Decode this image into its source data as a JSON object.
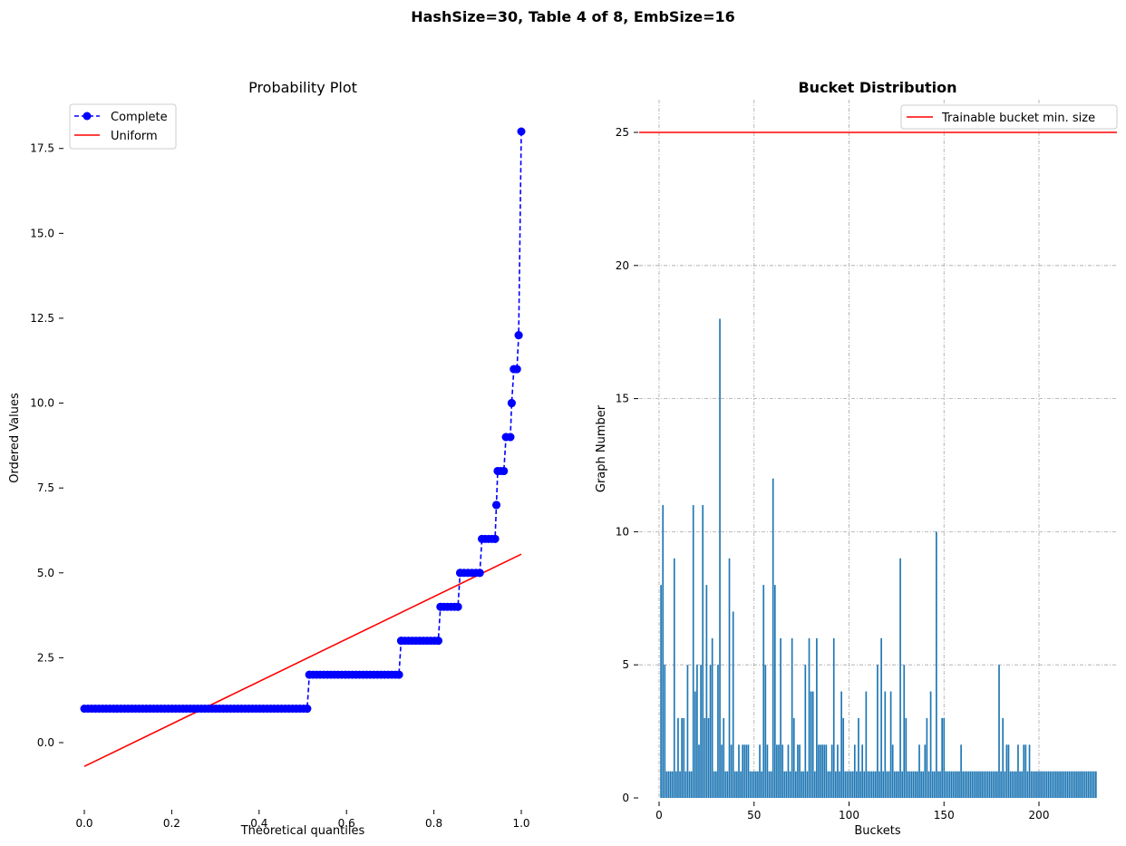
{
  "suptitle": "HashSize=30, Table 4 of 8, EmbSize=16",
  "chart_data": [
    {
      "type": "scatter",
      "title": "Probability Plot",
      "xlabel": "Theoretical quantiles",
      "ylabel": "Ordered Values",
      "xlim": [
        -0.05,
        1.05
      ],
      "ylim": [
        -1.65,
        18.9
      ],
      "xticks": [
        "0.0",
        "0.2",
        "0.4",
        "0.6",
        "0.8",
        "1.0"
      ],
      "yticks": [
        "0.0",
        "2.5",
        "5.0",
        "7.5",
        "10.0",
        "12.5",
        "15.0",
        "17.5"
      ],
      "legend": {
        "placement": "top-left",
        "entries": [
          "Complete",
          "Uniform"
        ]
      },
      "grid": false,
      "series": [
        {
          "name": "Complete",
          "style": "dashed line with circle markers",
          "color": "#0000ff",
          "points": [
            [
              0.0,
              1
            ],
            [
              0.51,
              1
            ],
            [
              0.515,
              2
            ],
            [
              0.72,
              2
            ],
            [
              0.725,
              3
            ],
            [
              0.81,
              3
            ],
            [
              0.815,
              4
            ],
            [
              0.855,
              4
            ],
            [
              0.86,
              5
            ],
            [
              0.905,
              5
            ],
            [
              0.91,
              6
            ],
            [
              0.94,
              6
            ],
            [
              0.943,
              7
            ],
            [
              0.946,
              8
            ],
            [
              0.96,
              8
            ],
            [
              0.965,
              9
            ],
            [
              0.975,
              9
            ],
            [
              0.978,
              10
            ],
            [
              0.983,
              11
            ],
            [
              0.99,
              11
            ],
            [
              0.994,
              12
            ],
            [
              1.0,
              18
            ]
          ]
        },
        {
          "name": "Uniform",
          "style": "solid line",
          "color": "#ff0000",
          "points": [
            [
              0.0,
              -0.7
            ],
            [
              1.0,
              5.55
            ]
          ]
        }
      ]
    },
    {
      "type": "bar",
      "title": "Bucket Distribution",
      "xlabel": "Buckets",
      "ylabel": "Graph Number",
      "xlim": [
        -11,
        242
      ],
      "ylim": [
        0,
        26.3
      ],
      "xticks": [
        "0",
        "50",
        "100",
        "150",
        "200"
      ],
      "yticks": [
        "0",
        "5",
        "10",
        "15",
        "20",
        "25"
      ],
      "grid": true,
      "legend": {
        "placement": "top-right",
        "entries": [
          "Trainable bucket min. size"
        ]
      },
      "bar_color": "#1f77b4",
      "hline": {
        "name": "Trainable bucket min. size",
        "y": 25,
        "color": "#ff0000"
      },
      "values": [
        8,
        11,
        5,
        1,
        1,
        1,
        1,
        9,
        1,
        3,
        1,
        3,
        3,
        1,
        5,
        1,
        1,
        11,
        4,
        5,
        2,
        5,
        11,
        3,
        8,
        3,
        5,
        6,
        1,
        1,
        5,
        18,
        2,
        3,
        1,
        1,
        9,
        2,
        7,
        1,
        1,
        2,
        1,
        2,
        2,
        2,
        2,
        1,
        1,
        1,
        1,
        1,
        2,
        1,
        8,
        5,
        2,
        1,
        1,
        12,
        8,
        2,
        2,
        6,
        2,
        1,
        1,
        2,
        1,
        6,
        3,
        1,
        2,
        2,
        1,
        1,
        5,
        1,
        6,
        4,
        4,
        1,
        6,
        2,
        2,
        2,
        2,
        2,
        1,
        1,
        2,
        6,
        1,
        2,
        1,
        4,
        3,
        1,
        1,
        1,
        1,
        1,
        2,
        1,
        3,
        1,
        2,
        1,
        4,
        1,
        1,
        1,
        1,
        1,
        5,
        1,
        6,
        1,
        4,
        1,
        1,
        4,
        2,
        1,
        1,
        1,
        9,
        1,
        5,
        3,
        1,
        1,
        1,
        1,
        1,
        1,
        2,
        1,
        1,
        2,
        3,
        1,
        4,
        1,
        1,
        10,
        1,
        1,
        3,
        3,
        1,
        1,
        1,
        1,
        1,
        1,
        1,
        1,
        2,
        1,
        1,
        1,
        1,
        1,
        1,
        1,
        1,
        1,
        1,
        1,
        1,
        1,
        1,
        1,
        1,
        1,
        1,
        1,
        5,
        1,
        3,
        1,
        2,
        2,
        1,
        1,
        1,
        1,
        2,
        1,
        1,
        2,
        2,
        1,
        2,
        1,
        1,
        1,
        1,
        1,
        1,
        1,
        1,
        1,
        1,
        1,
        1,
        1,
        1,
        1,
        1,
        1,
        1,
        1,
        1,
        1,
        1,
        1,
        1,
        1,
        1,
        1,
        1,
        1,
        1,
        1,
        1,
        1,
        1,
        1
      ]
    }
  ]
}
